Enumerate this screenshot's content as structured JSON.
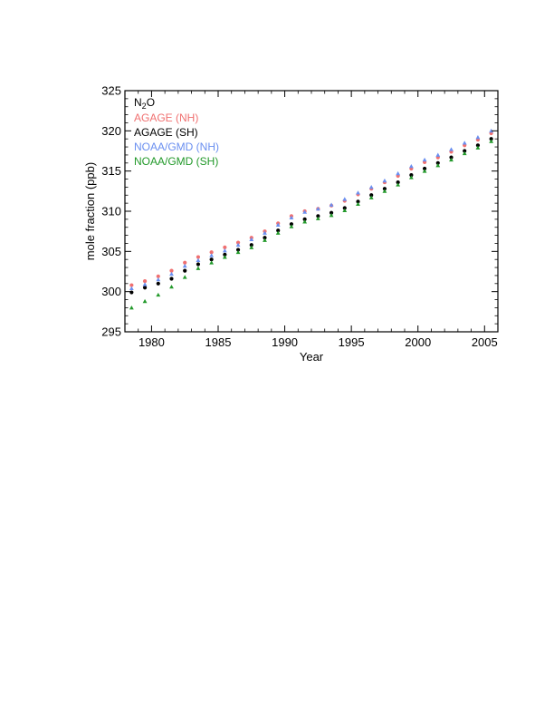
{
  "chart_data": {
    "type": "scatter",
    "title": "",
    "xlabel": "Year",
    "ylabel": "mole fraction (ppb)",
    "xlim": [
      1978,
      2006
    ],
    "ylim": [
      295,
      325
    ],
    "x_ticks": [
      1980,
      1985,
      1990,
      1995,
      2000,
      2005
    ],
    "y_ticks": [
      295,
      300,
      305,
      310,
      315,
      320,
      325
    ],
    "grid": false,
    "legend_placement": "top-left",
    "legend_title": {
      "main": "N",
      "sub": "2",
      "tail": "O"
    },
    "series": [
      {
        "name": "AGAGE (NH)",
        "color": "#f07070",
        "marker": "dot",
        "x": [
          1978.5,
          1979.5,
          1980.5,
          1981.5,
          1982.5,
          1983.5,
          1984.5,
          1985.5,
          1986.5,
          1987.5,
          1988.5,
          1989.5,
          1990.5,
          1991.5,
          1992.5,
          1993.5,
          1994.5,
          1995.5,
          1996.5,
          1997.5,
          1998.5,
          1999.5,
          2000.5,
          2001.5,
          2002.5,
          2003.5,
          2004.5,
          2005.5
        ],
        "y": [
          300.8,
          301.3,
          301.9,
          302.6,
          303.6,
          304.3,
          304.9,
          305.5,
          306.1,
          306.7,
          307.5,
          308.5,
          309.4,
          310.0,
          310.3,
          310.7,
          311.3,
          312.1,
          312.8,
          313.6,
          314.4,
          315.3,
          316.1,
          316.7,
          317.4,
          318.2,
          318.9,
          319.7
        ]
      },
      {
        "name": "AGAGE (SH)",
        "color": "#000000",
        "marker": "dot",
        "x": [
          1978.5,
          1979.5,
          1980.5,
          1981.5,
          1982.5,
          1983.5,
          1984.5,
          1985.5,
          1986.5,
          1987.5,
          1988.5,
          1989.5,
          1990.5,
          1991.5,
          1992.5,
          1993.5,
          1994.5,
          1995.5,
          1996.5,
          1997.5,
          1998.5,
          1999.5,
          2000.5,
          2001.5,
          2002.5,
          2003.5,
          2004.5,
          2005.5
        ],
        "y": [
          299.9,
          300.5,
          301.0,
          301.6,
          302.6,
          303.4,
          304.0,
          304.6,
          305.2,
          305.8,
          306.7,
          307.6,
          308.4,
          309.0,
          309.4,
          309.8,
          310.4,
          311.2,
          312.0,
          312.8,
          313.6,
          314.5,
          315.3,
          316.0,
          316.7,
          317.5,
          318.2,
          319.0
        ]
      },
      {
        "name": "NOAA/GMD (NH)",
        "color": "#6a8ff0",
        "marker": "triangle",
        "x": [
          1978.5,
          1979.5,
          1980.5,
          1981.5,
          1982.5,
          1983.5,
          1984.5,
          1985.5,
          1986.5,
          1987.5,
          1988.5,
          1989.5,
          1990.5,
          1991.5,
          1992.5,
          1993.5,
          1994.5,
          1995.5,
          1996.5,
          1997.5,
          1998.5,
          1999.5,
          2000.5,
          2001.5,
          2002.5,
          2003.5,
          2004.5,
          2005.5
        ],
        "y": [
          300.4,
          300.9,
          301.5,
          302.2,
          303.2,
          303.9,
          304.5,
          305.1,
          305.8,
          306.5,
          307.3,
          308.3,
          309.2,
          309.9,
          310.3,
          310.8,
          311.5,
          312.3,
          313.0,
          313.8,
          314.7,
          315.6,
          316.4,
          317.0,
          317.7,
          318.5,
          319.2,
          320.0
        ]
      },
      {
        "name": "NOAA/GMD (SH)",
        "color": "#22992a",
        "marker": "triangle",
        "x": [
          1978.5,
          1979.5,
          1980.5,
          1981.5,
          1982.5,
          1983.5,
          1984.5,
          1985.5,
          1986.5,
          1987.5,
          1988.5,
          1989.5,
          1990.5,
          1991.5,
          1992.5,
          1993.5,
          1994.5,
          1995.5,
          1996.5,
          1997.5,
          1998.5,
          1999.5,
          2000.5,
          2001.5,
          2002.5,
          2003.5,
          2004.5,
          2005.5
        ],
        "y": [
          298.0,
          298.8,
          299.6,
          300.6,
          301.8,
          302.9,
          303.6,
          304.3,
          304.9,
          305.5,
          306.4,
          307.3,
          308.1,
          308.7,
          309.1,
          309.5,
          310.1,
          310.9,
          311.7,
          312.5,
          313.3,
          314.2,
          315.0,
          315.7,
          316.4,
          317.2,
          317.9,
          318.7
        ]
      }
    ]
  }
}
